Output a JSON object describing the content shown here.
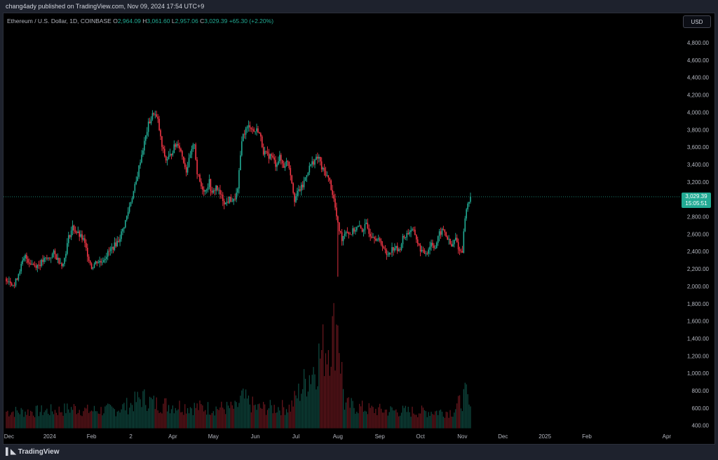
{
  "topbar": {
    "publisher_text": "chang4ady published on TradingView.com, Nov 09, 2024 17:54 UTC+9"
  },
  "legend": {
    "symbol": "Ethereum / U.S. Dollar, 1D, COINBASE",
    "o_label": "O",
    "o_value": "2,964.09",
    "h_label": "H",
    "h_value": "3,061.60",
    "l_label": "L",
    "l_value": "2,957.06",
    "c_label": "C",
    "c_value": "3,029.39",
    "change": "+65.30 (+2.20%)"
  },
  "currency_button": "USD",
  "price_tag": {
    "price": "3,029.39",
    "countdown": "15:05:51"
  },
  "brand": {
    "name": "TradingView",
    "icon": "tradingview-logo-icon"
  },
  "colors": {
    "up": "#22ab94",
    "down": "#f23645",
    "background": "#000000",
    "last_price": "#22ab94"
  },
  "chart_data": {
    "type": "candlestick",
    "title": "Ethereum / U.S. Dollar, 1D, COINBASE",
    "last_price": 3029.39,
    "y_ticks": [
      "4,800.00",
      "4,600.00",
      "4,400.00",
      "4,200.00",
      "4,000.00",
      "3,800.00",
      "3,600.00",
      "3,400.00",
      "3,200.00",
      "3,000.00",
      "2,800.00",
      "2,600.00",
      "2,400.00",
      "2,200.00",
      "2,000.00",
      "1,800.00",
      "1,600.00",
      "1,400.00",
      "1,200.00",
      "1,000.00",
      "800.00",
      "600.00",
      "400.00"
    ],
    "y_tick_values": [
      4800,
      4600,
      4400,
      4200,
      4000,
      3800,
      3600,
      3400,
      3200,
      3000,
      2800,
      2600,
      2400,
      2200,
      2000,
      1800,
      1600,
      1400,
      1200,
      1000,
      800,
      600,
      400
    ],
    "x_ticks": [
      "Dec",
      "2024",
      "Feb",
      "2",
      "Apr",
      "May",
      "Jun",
      "Jul",
      "Aug",
      "Sep",
      "Oct",
      "Nov",
      "Dec",
      "2025",
      "Feb",
      "Apr"
    ],
    "x_tick_days": [
      2,
      32,
      63,
      92,
      123,
      153,
      184,
      214,
      245,
      276,
      306,
      337,
      367,
      398,
      429,
      488
    ],
    "close_path": [
      [
        0,
        2090
      ],
      [
        3,
        2060
      ],
      [
        6,
        2010
      ],
      [
        10,
        2200
      ],
      [
        14,
        2340
      ],
      [
        17,
        2280
      ],
      [
        21,
        2240
      ],
      [
        24,
        2250
      ],
      [
        28,
        2300
      ],
      [
        31,
        2320
      ],
      [
        35,
        2380
      ],
      [
        38,
        2310
      ],
      [
        42,
        2250
      ],
      [
        46,
        2560
      ],
      [
        49,
        2680
      ],
      [
        53,
        2600
      ],
      [
        57,
        2530
      ],
      [
        61,
        2320
      ],
      [
        63,
        2220
      ],
      [
        67,
        2290
      ],
      [
        70,
        2280
      ],
      [
        74,
        2360
      ],
      [
        77,
        2420
      ],
      [
        80,
        2470
      ],
      [
        83,
        2530
      ],
      [
        86,
        2650
      ],
      [
        89,
        2800
      ],
      [
        92,
        2980
      ],
      [
        96,
        3200
      ],
      [
        99,
        3450
      ],
      [
        102,
        3650
      ],
      [
        105,
        3860
      ],
      [
        109,
        4000
      ],
      [
        112,
        3900
      ],
      [
        115,
        3600
      ],
      [
        118,
        3450
      ],
      [
        121,
        3500
      ],
      [
        124,
        3600
      ],
      [
        127,
        3650
      ],
      [
        130,
        3500
      ],
      [
        133,
        3330
      ],
      [
        136,
        3500
      ],
      [
        139,
        3650
      ],
      [
        141,
        3300
      ],
      [
        144,
        3150
      ],
      [
        147,
        3100
      ],
      [
        150,
        3200
      ],
      [
        152,
        3050
      ],
      [
        155,
        3150
      ],
      [
        158,
        3050
      ],
      [
        162,
        2950
      ],
      [
        165,
        3000
      ],
      [
        168,
        2980
      ],
      [
        171,
        3100
      ],
      [
        174,
        3700
      ],
      [
        177,
        3800
      ],
      [
        180,
        3850
      ],
      [
        183,
        3780
      ],
      [
        186,
        3800
      ],
      [
        188,
        3700
      ],
      [
        190,
        3550
      ],
      [
        193,
        3500
      ],
      [
        196,
        3500
      ],
      [
        199,
        3400
      ],
      [
        202,
        3480
      ],
      [
        205,
        3380
      ],
      [
        208,
        3450
      ],
      [
        210,
        3300
      ],
      [
        213,
        3000
      ],
      [
        216,
        3100
      ],
      [
        219,
        3150
      ],
      [
        222,
        3300
      ],
      [
        225,
        3400
      ],
      [
        228,
        3450
      ],
      [
        231,
        3480
      ],
      [
        233,
        3350
      ],
      [
        236,
        3300
      ],
      [
        239,
        3200
      ],
      [
        242,
        3000
      ],
      [
        245,
        2700
      ],
      [
        248,
        2550
      ],
      [
        251,
        2650
      ],
      [
        254,
        2600
      ],
      [
        257,
        2650
      ],
      [
        260,
        2680
      ],
      [
        263,
        2650
      ],
      [
        266,
        2700
      ],
      [
        269,
        2600
      ],
      [
        272,
        2580
      ],
      [
        275,
        2520
      ],
      [
        278,
        2480
      ],
      [
        281,
        2350
      ],
      [
        284,
        2420
      ],
      [
        287,
        2450
      ],
      [
        290,
        2400
      ],
      [
        293,
        2550
      ],
      [
        296,
        2600
      ],
      [
        299,
        2650
      ],
      [
        302,
        2600
      ],
      [
        305,
        2450
      ],
      [
        308,
        2380
      ],
      [
        311,
        2400
      ],
      [
        314,
        2500
      ],
      [
        317,
        2450
      ],
      [
        320,
        2600
      ],
      [
        323,
        2650
      ],
      [
        326,
        2550
      ],
      [
        329,
        2450
      ],
      [
        332,
        2550
      ],
      [
        335,
        2400
      ],
      [
        337,
        2420
      ],
      [
        339,
        2800
      ],
      [
        341,
        2950
      ],
      [
        343,
        3029
      ]
    ],
    "volume_path": [
      [
        0,
        560
      ],
      [
        20,
        560
      ],
      [
        40,
        575
      ],
      [
        50,
        600
      ],
      [
        60,
        570
      ],
      [
        80,
        580
      ],
      [
        92,
        640
      ],
      [
        100,
        720
      ],
      [
        110,
        650
      ],
      [
        140,
        610
      ],
      [
        150,
        600
      ],
      [
        170,
        600
      ],
      [
        174,
        720
      ],
      [
        185,
        600
      ],
      [
        210,
        610
      ],
      [
        245,
        1550
      ],
      [
        250,
        640
      ],
      [
        270,
        580
      ],
      [
        300,
        560
      ],
      [
        330,
        560
      ],
      [
        340,
        760
      ],
      [
        343,
        560
      ]
    ]
  }
}
